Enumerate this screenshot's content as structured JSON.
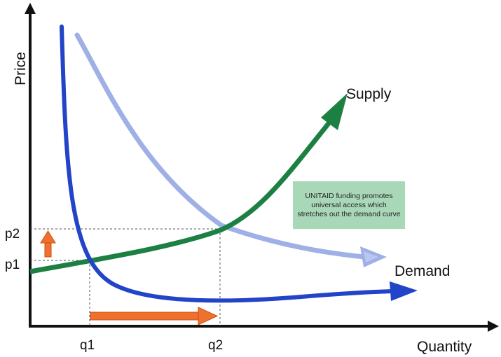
{
  "labels": {
    "y_axis": "Price",
    "x_axis": "Quantity",
    "supply": "Supply",
    "demand": "Demand",
    "p1": "p1",
    "p2": "p2",
    "q1": "q1",
    "q2": "q2"
  },
  "note": {
    "text": "UNITAID funding promotes universal access which stretches out the demand curve"
  },
  "colors": {
    "supply": "#1d8043",
    "demand": "#2244c8",
    "demand_shifted": "#9fb0e6",
    "arrows": "#f07030",
    "note_bg": "#a9d8b9"
  }
}
